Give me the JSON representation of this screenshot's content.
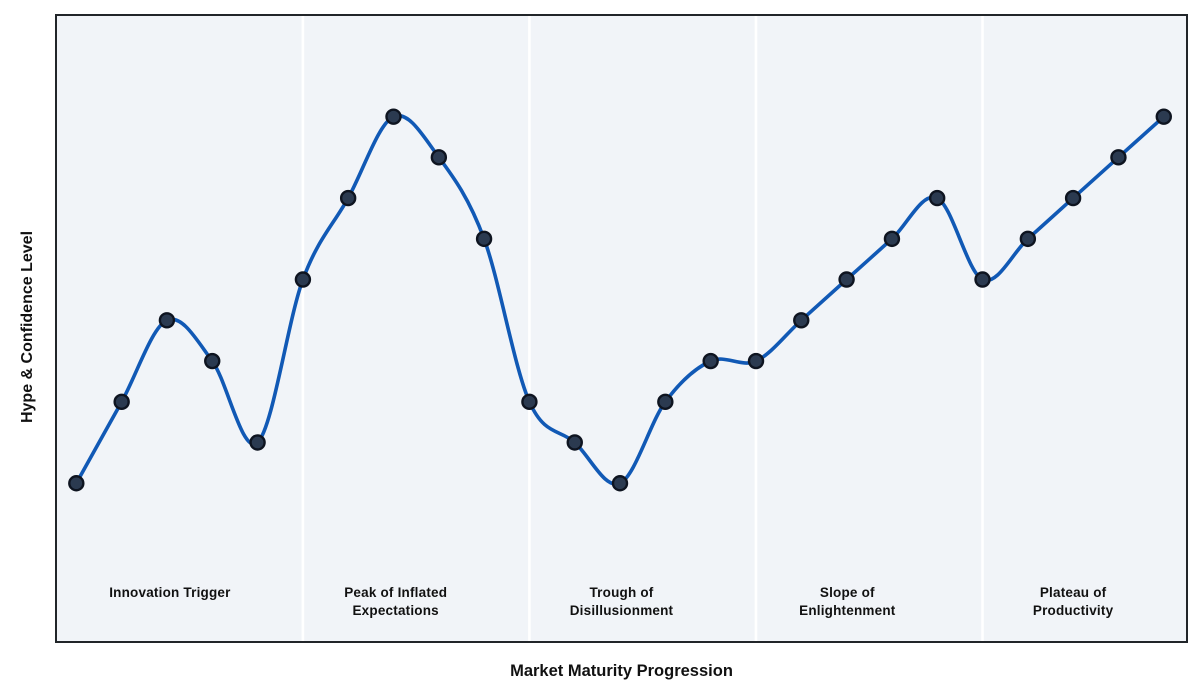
{
  "chart_data": {
    "type": "line",
    "x": [
      1,
      2,
      3,
      4,
      5,
      6,
      7,
      8,
      9,
      10,
      11,
      12,
      13,
      14,
      15,
      16,
      17,
      18,
      19,
      20,
      21,
      22,
      23,
      24,
      25
    ],
    "values": [
      10,
      30,
      50,
      40,
      20,
      60,
      80,
      100,
      90,
      70,
      30,
      20,
      10,
      30,
      40,
      40,
      50,
      60,
      70,
      80,
      60,
      70,
      80,
      90,
      100
    ],
    "title": "",
    "xlabel": "Market Maturity Progression",
    "ylabel": "Hype & Confidence Level",
    "ylim": [
      -30,
      126
    ],
    "grid": false,
    "legend": false,
    "smoothing": "spline-through-points",
    "phase_divider_indices": [
      5,
      10,
      15,
      20
    ],
    "phases": [
      {
        "label": "Innovation Trigger"
      },
      {
        "label": "Peak of Inflated\nExpectations"
      },
      {
        "label": "Trough of\nDisillusionment"
      },
      {
        "label": "Slope of\nEnlightenment"
      },
      {
        "label": "Plateau of\nProductivity"
      }
    ]
  },
  "colors": {
    "line": "#1159b5",
    "marker_fill": "#2b3a50",
    "marker_edge": "#0e1420",
    "plot_background": "#f1f4f8",
    "phase_divider": "#ffffff",
    "axes_border": "#212529",
    "figure_background": "#ffffff",
    "text": "#111111"
  }
}
